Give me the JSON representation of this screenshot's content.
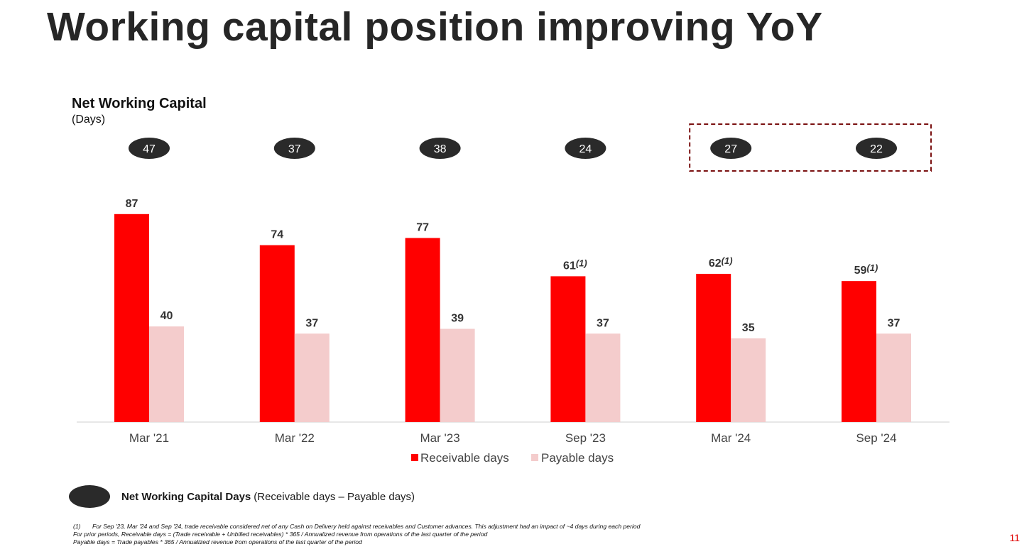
{
  "title": "Working capital position improving YoY",
  "chart_data": {
    "type": "bar",
    "title": "Net Working Capital",
    "subtitle": "(Days)",
    "categories": [
      "Mar '21",
      "Mar '22",
      "Mar '23",
      "Sep '23",
      "Mar '24",
      "Sep '24"
    ],
    "series": [
      {
        "name": "Receivable days",
        "color": "#ff0000",
        "values": [
          87,
          74,
          77,
          61,
          62,
          59
        ],
        "label_suffix": [
          "",
          "",
          "",
          "(1)",
          "(1)",
          "(1)"
        ]
      },
      {
        "name": "Payable days",
        "color": "#f4cccc",
        "values": [
          40,
          37,
          39,
          37,
          35,
          37
        ]
      }
    ],
    "net_working_capital_days": [
      47,
      37,
      38,
      24,
      27,
      22
    ],
    "highlighted_categories": [
      "Mar '24",
      "Sep '24"
    ],
    "ylim": [
      0,
      100
    ],
    "grid": false,
    "legend_position": "bottom"
  },
  "legend": {
    "nwc_bold": "Net Working Capital Days",
    "nwc_rest": "(Receivable days – Payable days)"
  },
  "footnotes": {
    "marker": "(1)",
    "line1": "For Sep '23, Mar '24 and Sep '24, trade receivable considered net of any Cash on Delivery held against receivables and Customer advances. This adjustment had an impact of ~4 days during each period",
    "line2": "For prior periods, Receivable days = (Trade receivable + Unbilled receivables) * 365 /  Annualized revenue from operations of the last quarter of the period",
    "line3": "Payable days = Trade payables * 365 /  Annualized revenue from operations of the last quarter of the period"
  },
  "page_number": "11",
  "colors": {
    "receivable": "#ff0000",
    "payable": "#f4cccc",
    "oval": "#2a2a2a",
    "highlight_border": "#7a1010",
    "accent": "#e00000"
  }
}
